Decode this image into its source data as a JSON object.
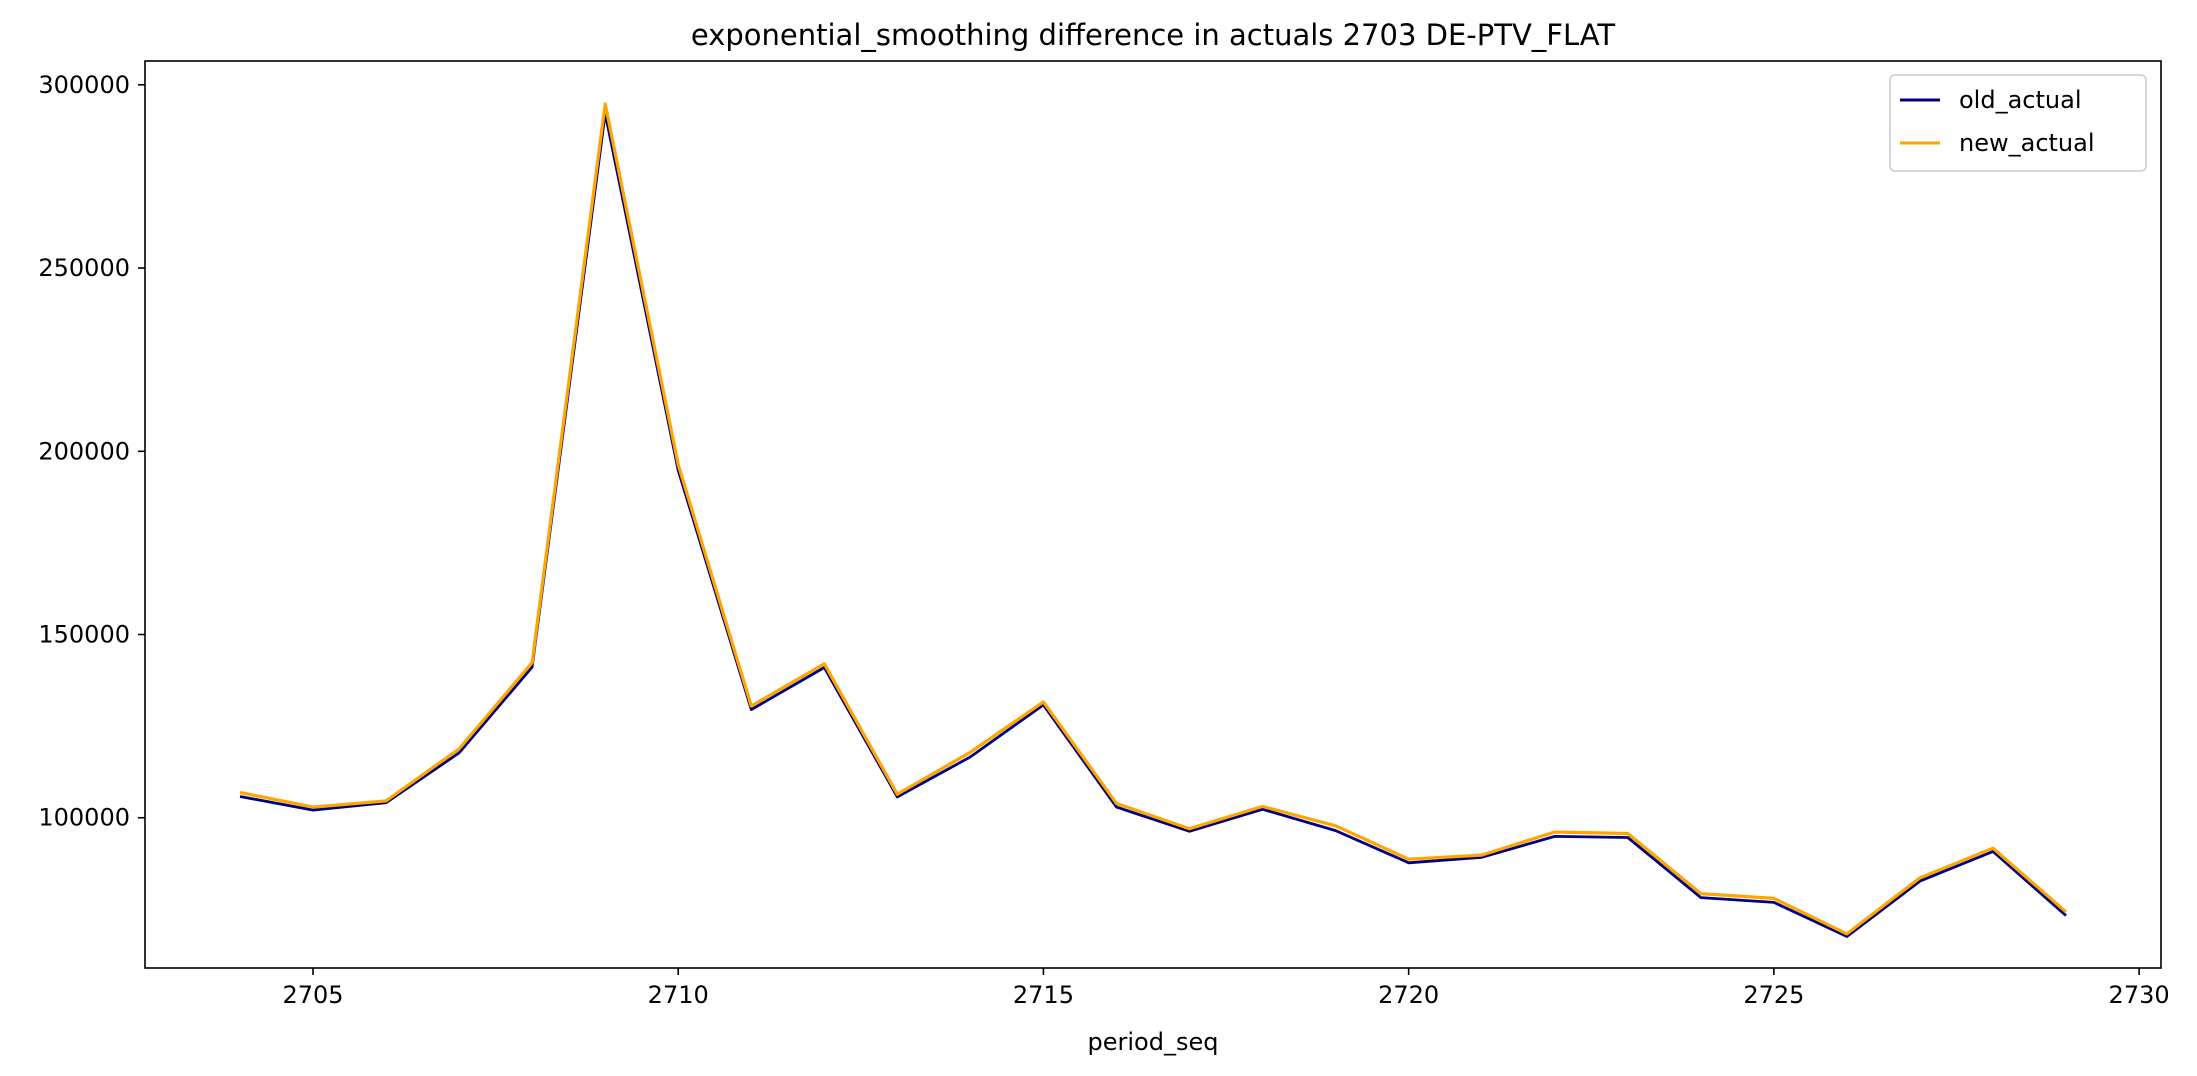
{
  "chart_data": {
    "type": "line",
    "title": "exponential_smoothing difference in actuals 2703 DE-PTV_FLAT",
    "xlabel": "period_seq",
    "ylabel": "",
    "xlim": [
      2702.7,
      2730.3
    ],
    "ylim": [
      59000,
      306500
    ],
    "xticks": [
      2705,
      2710,
      2715,
      2720,
      2725,
      2730
    ],
    "yticks": [
      100000,
      150000,
      200000,
      250000,
      300000
    ],
    "x": [
      2704,
      2705,
      2706,
      2707,
      2708,
      2709,
      2710,
      2711,
      2712,
      2713,
      2714,
      2715,
      2716,
      2717,
      2718,
      2719,
      2720,
      2721,
      2722,
      2723,
      2724,
      2725,
      2726,
      2727,
      2728,
      2729
    ],
    "series": [
      {
        "name": "old_actual",
        "color": "#000080",
        "values": [
          105800,
          102100,
          104100,
          117700,
          141100,
          292200,
          194800,
          129500,
          141000,
          105700,
          116600,
          130800,
          102900,
          96300,
          102300,
          96500,
          87700,
          89200,
          94900,
          94600,
          78200,
          76900,
          67600,
          82700,
          90800,
          73300
        ]
      },
      {
        "name": "new_actual",
        "color": "#ffa500",
        "values": [
          106900,
          102900,
          104600,
          118800,
          142300,
          294800,
          196400,
          130500,
          142000,
          106400,
          117900,
          131600,
          103900,
          97000,
          103100,
          97800,
          88700,
          89800,
          96100,
          95700,
          79300,
          78000,
          68300,
          83600,
          91700,
          74300
        ]
      }
    ],
    "legend_position": "top-right",
    "grid": false
  }
}
